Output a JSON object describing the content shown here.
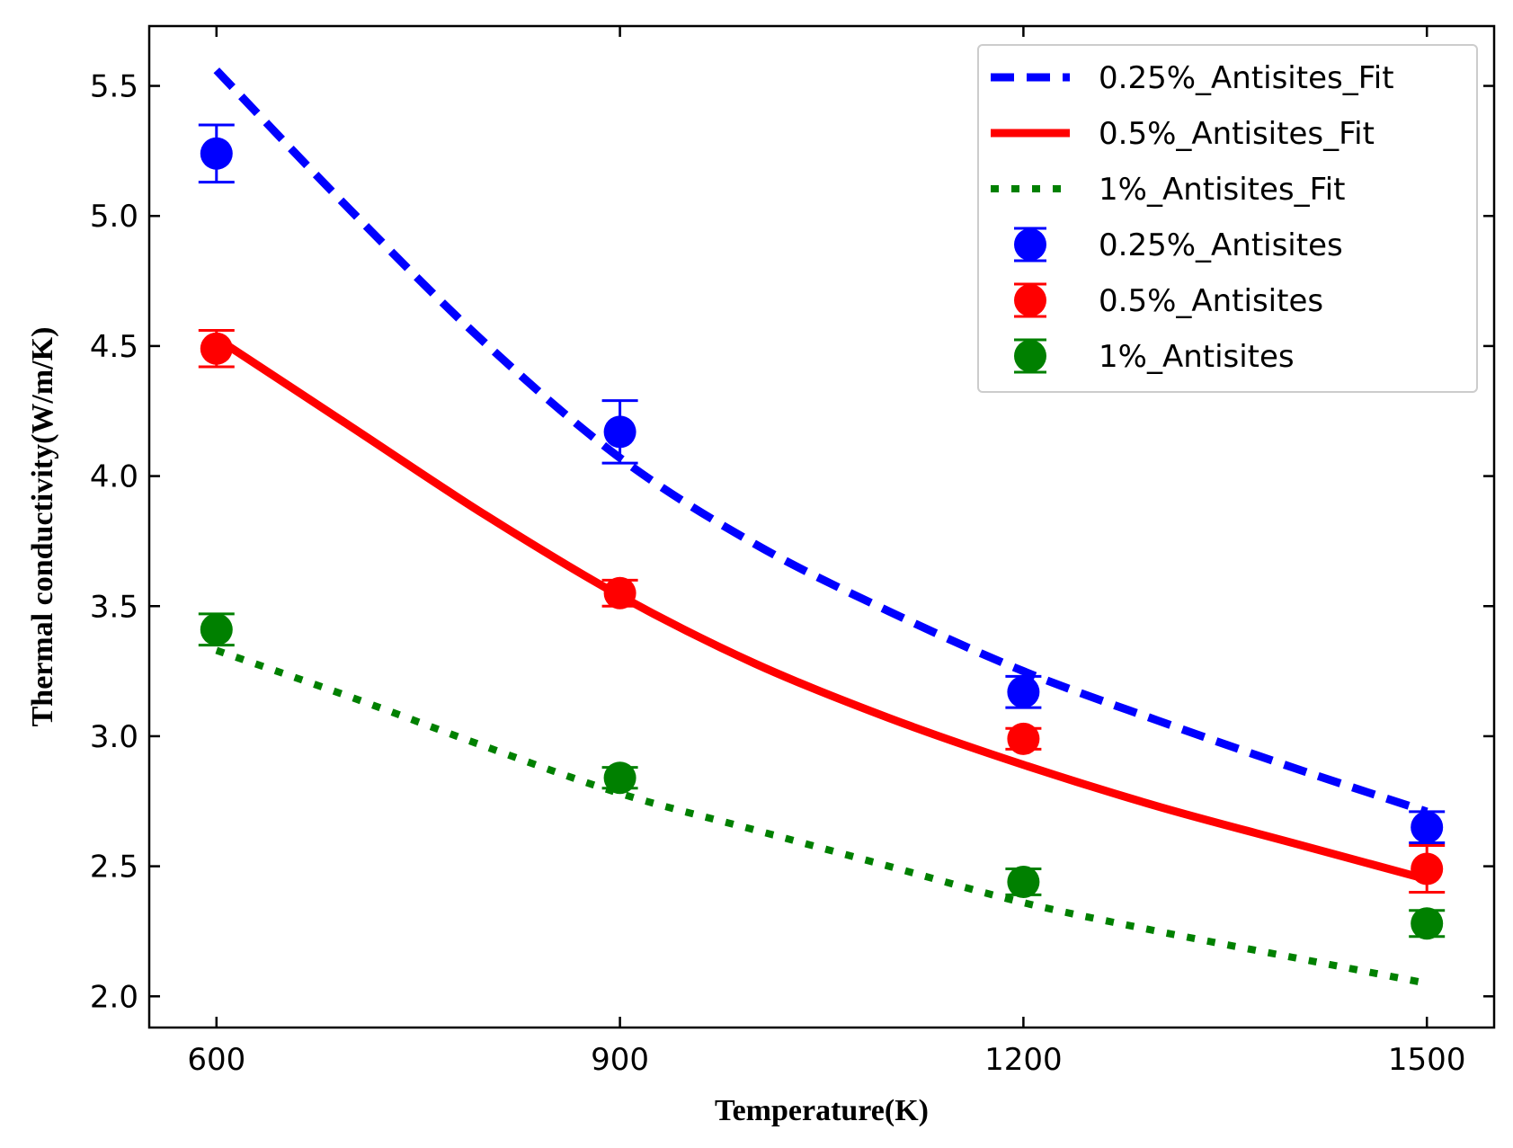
{
  "chart_data": {
    "type": "scatter",
    "xlabel": "Temperature(K)",
    "ylabel": "Thermal conductivity(W/m/K)",
    "xlim": [
      550,
      1550
    ],
    "ylim": [
      1.88,
      5.73
    ],
    "x_ticks": [
      600,
      900,
      1200,
      1500
    ],
    "y_ticks": [
      2.0,
      2.5,
      3.0,
      3.5,
      4.0,
      4.5,
      5.0,
      5.5
    ],
    "tick_direction": "in",
    "grid": false,
    "legend_position": "top-right",
    "fit_series": [
      {
        "name": "0.25%_Antisites_Fit",
        "style": "dashed",
        "color": "#0000ff",
        "x": [
          600,
          700,
          800,
          900,
          1000,
          1100,
          1200,
          1300,
          1400,
          1500
        ],
        "y": [
          5.56,
          5.02,
          4.51,
          4.07,
          3.74,
          3.48,
          3.25,
          3.06,
          2.88,
          2.71
        ]
      },
      {
        "name": "0.5%_Antisites_Fit",
        "style": "solid",
        "color": "#ff0000",
        "x": [
          600,
          700,
          800,
          900,
          1000,
          1100,
          1200,
          1300,
          1400,
          1500
        ],
        "y": [
          4.53,
          4.19,
          3.85,
          3.54,
          3.28,
          3.07,
          2.89,
          2.73,
          2.59,
          2.45
        ]
      },
      {
        "name": "1%_Antisites_Fit",
        "style": "dotted",
        "color": "#008000",
        "x": [
          600,
          700,
          800,
          900,
          1000,
          1100,
          1200,
          1300,
          1400,
          1500
        ],
        "y": [
          3.33,
          3.15,
          2.96,
          2.78,
          2.64,
          2.5,
          2.36,
          2.25,
          2.15,
          2.05
        ]
      }
    ],
    "point_series": [
      {
        "name": "0.25%_Antisites",
        "color": "#0000ff",
        "x": [
          600,
          900,
          1200,
          1500
        ],
        "y": [
          5.24,
          4.17,
          3.17,
          2.65
        ],
        "err": [
          0.11,
          0.12,
          0.06,
          0.06
        ]
      },
      {
        "name": "0.5%_Antisites",
        "color": "#ff0000",
        "x": [
          600,
          900,
          1200,
          1500
        ],
        "y": [
          4.49,
          3.55,
          2.99,
          2.49
        ],
        "err": [
          0.07,
          0.05,
          0.04,
          0.09
        ]
      },
      {
        "name": "1%_Antisites",
        "color": "#008000",
        "x": [
          600,
          900,
          1200,
          1500
        ],
        "y": [
          3.41,
          2.84,
          2.44,
          2.28
        ],
        "err": [
          0.06,
          0.04,
          0.05,
          0.05
        ]
      }
    ]
  }
}
